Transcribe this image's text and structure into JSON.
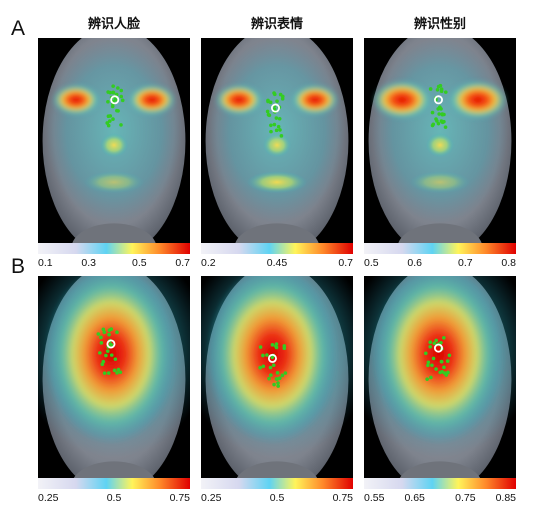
{
  "rows": [
    {
      "label": "A",
      "panels": [
        {
          "title": "辨识人脸",
          "colorbar": {
            "ticks": [
              "0.1",
              "0.3",
              "0.5",
              "0.7"
            ]
          },
          "heat": "eyes",
          "fixation": [
            0.505,
            0.3
          ]
        },
        {
          "title": "辨识表情",
          "colorbar": {
            "ticks": [
              "0.2",
              "0.45",
              "0.7"
            ]
          },
          "heat": "eyes-mouth",
          "fixation": [
            0.49,
            0.34
          ]
        },
        {
          "title": "辨识性别",
          "colorbar": {
            "ticks": [
              "0.5",
              "0.6",
              "0.7",
              "0.8"
            ]
          },
          "heat": "eyes-strong",
          "fixation": [
            0.49,
            0.3
          ]
        }
      ]
    },
    {
      "label": "B",
      "panels": [
        {
          "title": "",
          "colorbar": {
            "ticks": [
              "0.25",
              "0.5",
              "0.75"
            ]
          },
          "heat": "center",
          "fixation": [
            0.48,
            0.33
          ]
        },
        {
          "title": "",
          "colorbar": {
            "ticks": [
              "0.25",
              "0.5",
              "0.75"
            ]
          },
          "heat": "center",
          "fixation": [
            0.47,
            0.4
          ]
        },
        {
          "title": "",
          "colorbar": {
            "ticks": [
              "0.55",
              "0.65",
              "0.75",
              "0.85"
            ]
          },
          "heat": "center",
          "fixation": [
            0.49,
            0.35
          ]
        }
      ]
    }
  ],
  "colors": {
    "background": "#000000",
    "face": "#8a8f98",
    "fixation_dots": "#33cc22",
    "fixation_marker": "#ffffff"
  }
}
